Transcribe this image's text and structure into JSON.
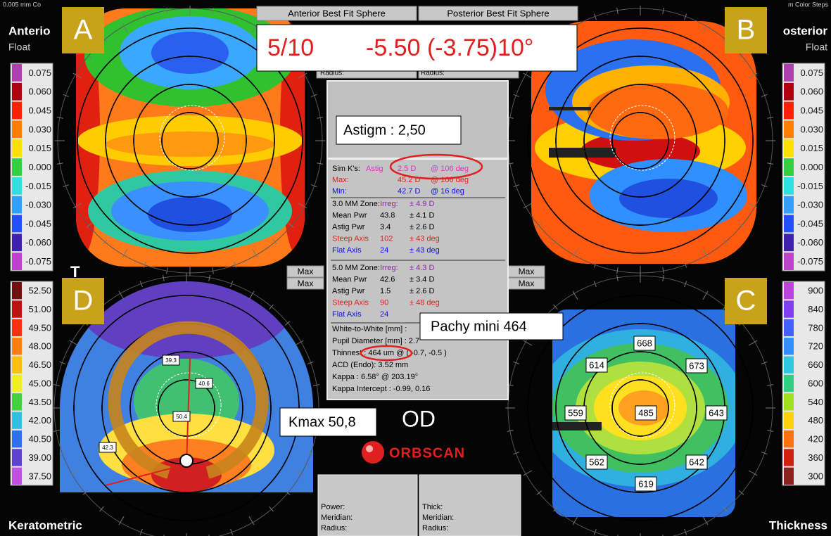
{
  "header": {
    "left_note": "0.005 mm Co",
    "right_note": "m Color Steps",
    "left_title": "Anterio",
    "left_sub": "Float",
    "right_title": "osterior",
    "right_sub": "Float",
    "bottom_left": "Keratometric",
    "bottom_right": "Thickness",
    "t_mark": "T"
  },
  "buttons": {
    "anterior": "Anterior Best Fit Sphere",
    "posterior": "Posterior Best Fit Sphere",
    "radius_left": "Radius:",
    "radius_right": "Radius:",
    "max": [
      "Max",
      "Max",
      "Max",
      "Max"
    ]
  },
  "annotations": {
    "visual_acuity": "5/10",
    "refraction": "-5.50 (-3.75)10°",
    "astigm": "Astigm : 2,50",
    "pachy": "Pachy mini 464",
    "kmax": "Kmax 50,8"
  },
  "map_labels": {
    "a": "A",
    "b": "B",
    "c": "C",
    "d": "D"
  },
  "scales": {
    "anterior": [
      "0.075",
      "0.060",
      "0.045",
      "0.030",
      "0.015",
      "0.000",
      "-0.015",
      "-0.030",
      "-0.045",
      "-0.060",
      "-0.075"
    ],
    "posterior": [
      "0.075",
      "0.060",
      "0.045",
      "0.030",
      "0.015",
      "0.000",
      "-0.015",
      "-0.030",
      "-0.045",
      "-0.060",
      "-0.075"
    ],
    "keratometric": [
      "52.50",
      "51.00",
      "49.50",
      "48.00",
      "46.50",
      "45.00",
      "43.50",
      "42.00",
      "40.50",
      "39.00",
      "37.50"
    ],
    "thickness": [
      "900",
      "840",
      "780",
      "720",
      "660",
      "600",
      "540",
      "480",
      "420",
      "360",
      "300"
    ]
  },
  "panel": {
    "sim_k": [
      [
        "Sim K's:",
        "Astig",
        "2.5 D",
        "@ 106 deg"
      ],
      [
        "Max:",
        "45.2 D",
        "@ 106 deg"
      ],
      [
        "Min:",
        "42.7 D",
        "@ 16 deg"
      ]
    ],
    "zone3": [
      [
        "3.0 MM Zone:",
        "Irreg:",
        "± 4.9 D"
      ],
      [
        "Mean Pwr",
        "43.8",
        "± 4.1 D"
      ],
      [
        "Astig Pwr",
        "3.4",
        "± 2.6 D"
      ],
      [
        "Steep Axis",
        "102",
        "± 43 deg"
      ],
      [
        "Flat Axis",
        "24",
        "± 43 deg"
      ]
    ],
    "zone5": [
      [
        "5.0 MM Zone:",
        "Irreg:",
        "± 4.3 D"
      ],
      [
        "Mean Pwr",
        "42.6",
        "± 3.4 D"
      ],
      [
        "Astig Pwr",
        "1.5",
        "± 2.6 D"
      ],
      [
        "Steep Axis",
        "90",
        "± 48 deg"
      ],
      [
        "Flat Axis",
        "24"
      ]
    ],
    "info": [
      "White-to-White [mm] :",
      "Pupil Diameter [mm] :  2.7",
      "Thinnest : 464 um @ ( -0.7, -0.5 )",
      "ACD (Endo): 3.52 mm",
      "Kappa : 6.58° @ 203.19°",
      "Kappa Intercept : -0.99, 0.16"
    ]
  },
  "thickness_points": [
    "668",
    "614",
    "673",
    "559",
    "485",
    "643",
    "562",
    "642",
    "619"
  ],
  "keratometric_points": [
    "39.3",
    "40.6",
    "50.4",
    "42.3"
  ],
  "logo": {
    "eye": "OD",
    "brand": "ORBSCAN"
  },
  "bottom_boxes": {
    "left": [
      "Power:",
      "Meridian:",
      "Radius:"
    ],
    "right": [
      "Thick:",
      "Meridian:",
      "Radius:"
    ]
  }
}
